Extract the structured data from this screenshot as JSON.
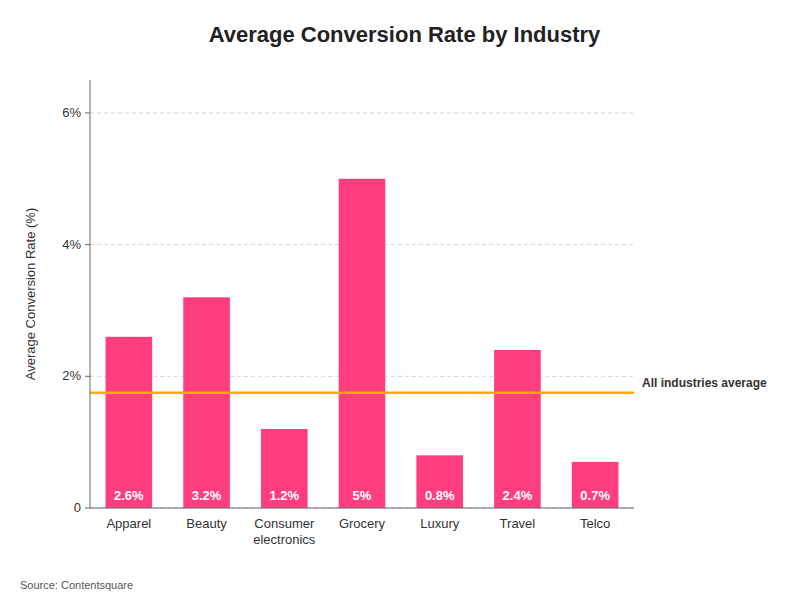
{
  "chart_data": {
    "type": "bar",
    "title": "Average Conversion Rate by Industry",
    "categories": [
      "Apparel",
      "Beauty",
      "Consumer\nelectronics",
      "Grocery",
      "Luxury",
      "Travel",
      "Telco"
    ],
    "values": [
      2.6,
      3.2,
      1.2,
      5.0,
      0.8,
      2.4,
      0.7
    ],
    "value_labels": [
      "2.6%",
      "3.2%",
      "1.2%",
      "5%",
      "0.8%",
      "2.4%",
      "0.7%"
    ],
    "data_labels": true,
    "color": "#ff3d7f",
    "ylabel": "Average Conversion Rate (%)",
    "ylim": [
      0,
      6.5
    ],
    "yticks": [
      0,
      {
        "value": 2,
        "label": "2%"
      },
      {
        "value": 4,
        "label": "4%"
      },
      {
        "value": 6,
        "label": "6%"
      }
    ],
    "grid": true,
    "annotations": [
      {
        "text": "All industries average",
        "y": 1.75,
        "color": "#ffaa00"
      }
    ],
    "source": "Source: Contentsquare"
  }
}
